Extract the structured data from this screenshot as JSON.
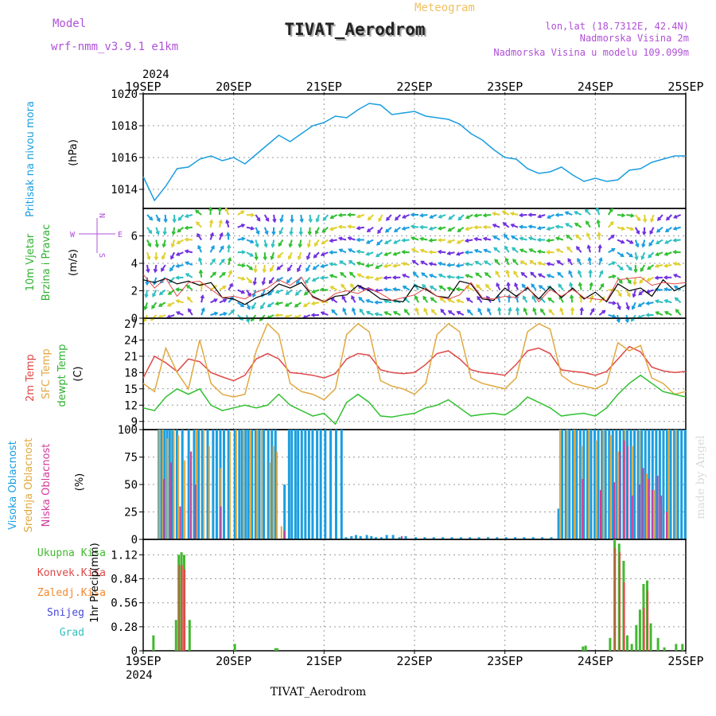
{
  "header": {
    "model_label": "Model",
    "model_name": "wrf-nmm_v3.9.1  e1km",
    "meteogram_label": "Meteogram",
    "station_title": "TIVAT_Aerodrom",
    "lonlat": "lon,lat (18.7312E, 42.4N)",
    "elevation": "Nadmorska Visina 2m",
    "model_elevation": "Nadmorska Visina u modelu 109.099m"
  },
  "footer": {
    "station": "TIVAT_Aerodrom",
    "watermark": "made by Angel"
  },
  "time_axis": {
    "year_top": "2024",
    "year_bottom": "2024",
    "labels": [
      "19SEP",
      "20SEP",
      "21SEP",
      "22SEP",
      "23SEP",
      "24SEP",
      "25SEP"
    ]
  },
  "colors": {
    "pressure": "#1a9ee0",
    "temp2m": "#e04848",
    "sfc_temp": "#e0a840",
    "dewpt": "#30c030",
    "high_cloud": "#1a9ee0",
    "mid_cloud": "#e0a840",
    "low_cloud": "#d03c9c",
    "total_rain": "#44b830",
    "conv_rain": "#e04848",
    "frozen_rain": "#f08a30",
    "snow": "#4848e0",
    "hail": "#30c0c0",
    "wind_speed": "#000000",
    "gust": "#e04848"
  },
  "chart_data": [
    {
      "type": "line",
      "panel": "pressure",
      "ylabel_name": "Pritisak na nivou mora",
      "ylabel_unit": "(hPa)",
      "ylim": [
        1012.8,
        1020
      ],
      "yticks": [
        1014,
        1016,
        1018,
        1020
      ],
      "x_days": [
        0,
        0.125,
        0.25,
        0.375,
        0.5,
        0.625,
        0.75,
        0.875,
        1.0,
        1.125,
        1.25,
        1.375,
        1.5,
        1.625,
        1.75,
        1.875,
        2.0,
        2.125,
        2.25,
        2.375,
        2.5,
        2.625,
        2.75,
        2.875,
        3.0,
        3.125,
        3.25,
        3.375,
        3.5,
        3.625,
        3.75,
        3.875,
        4.0,
        4.125,
        4.25,
        4.375,
        4.5,
        4.625,
        4.75,
        4.875,
        5.0,
        5.125,
        5.25,
        5.375,
        5.5,
        5.625,
        5.75,
        5.875,
        6.0
      ],
      "series": [
        {
          "color_key": "pressure",
          "values": [
            1014.8,
            1013.3,
            1014.2,
            1015.3,
            1015.4,
            1015.9,
            1016.1,
            1015.8,
            1016.0,
            1015.6,
            1016.2,
            1016.8,
            1017.4,
            1017.0,
            1017.5,
            1018.0,
            1018.2,
            1018.6,
            1018.5,
            1019.0,
            1019.4,
            1019.3,
            1018.7,
            1018.8,
            1018.9,
            1018.6,
            1018.5,
            1018.4,
            1018.1,
            1017.5,
            1017.1,
            1016.5,
            1016.0,
            1015.9,
            1015.3,
            1015.0,
            1015.1,
            1015.4,
            1014.9,
            1014.5,
            1014.7,
            1014.5,
            1014.6,
            1015.2,
            1015.3,
            1015.7,
            1015.9,
            1016.1,
            1016.1
          ]
        }
      ]
    },
    {
      "type": "line",
      "panel": "wind",
      "ylabel_name": "10m Vjetar",
      "ylabel_name2": "Brzina i Pravac",
      "ylabel_unit": "(m/s)",
      "ylim": [
        0,
        8
      ],
      "yticks": [
        0,
        2,
        4,
        6
      ],
      "compass_N": "N",
      "compass_W": "W",
      "compass_E": "E",
      "compass_S": "S",
      "x_days": [
        0,
        0.125,
        0.25,
        0.375,
        0.5,
        0.625,
        0.75,
        0.875,
        1.0,
        1.125,
        1.25,
        1.375,
        1.5,
        1.625,
        1.75,
        1.875,
        2.0,
        2.125,
        2.25,
        2.375,
        2.5,
        2.625,
        2.75,
        2.875,
        3.0,
        3.125,
        3.25,
        3.375,
        3.5,
        3.625,
        3.75,
        3.875,
        4.0,
        4.125,
        4.25,
        4.375,
        4.5,
        4.625,
        4.75,
        4.875,
        5.0,
        5.125,
        5.25,
        5.375,
        5.5,
        5.625,
        5.75,
        5.875,
        6.0
      ],
      "series": [
        {
          "color_key": "wind_speed",
          "values": [
            2.8,
            2.6,
            2.9,
            2.5,
            2.7,
            2.4,
            2.6,
            1.5,
            1.4,
            1.0,
            1.5,
            1.8,
            2.5,
            2.2,
            2.6,
            1.6,
            1.2,
            1.6,
            1.7,
            2.4,
            2.0,
            1.4,
            1.3,
            1.2,
            2.4,
            2.1,
            1.6,
            1.5,
            2.7,
            2.5,
            1.4,
            1.3,
            2.2,
            1.6,
            2.2,
            1.4,
            2.3,
            1.5,
            2.2,
            1.4,
            1.9,
            1.2,
            2.5,
            2.0,
            2.2,
            1.6,
            2.8,
            2.0,
            2.4
          ]
        },
        {
          "color_key": "gust",
          "values": [
            3.2,
            2.2,
            2.9,
            1.6,
            2.6,
            2.7,
            2.1,
            1.5,
            1.6,
            1.4,
            1.9,
            2.2,
            2.8,
            2.4,
            3.0,
            1.5,
            1.2,
            1.8,
            2.0,
            1.8,
            2.2,
            1.8,
            1.3,
            1.5,
            1.7,
            2.2,
            1.6,
            1.4,
            1.7,
            2.6,
            1.5,
            1.4,
            1.6,
            1.5,
            2.3,
            1.2,
            2.1,
            1.6,
            2.1,
            1.5,
            1.4,
            1.3,
            2.8,
            2.9,
            3.0,
            2.4,
            2.6,
            2.5,
            2.6
          ]
        }
      ],
      "direction_deg": [
        45,
        60,
        80,
        120,
        150,
        200,
        250,
        220,
        300,
        330,
        20,
        40,
        60,
        40,
        30,
        50,
        70,
        90,
        110,
        90,
        60,
        40,
        50,
        70,
        90,
        80,
        60,
        40,
        30,
        45,
        60,
        75,
        90,
        70,
        50,
        30,
        20,
        40,
        60,
        80,
        100,
        150,
        210,
        250,
        280,
        300,
        320,
        340,
        10
      ]
    },
    {
      "type": "line",
      "panel": "temperature",
      "ylabel_name": "2m Temp",
      "ylabel_name2": "SFC Temp",
      "ylabel_name3": "dewpt Temp",
      "ylabel_unit": "(C)",
      "ylim": [
        7.5,
        28
      ],
      "yticks": [
        9,
        12,
        15,
        18,
        21,
        24,
        27
      ],
      "x_days": [
        0,
        0.125,
        0.25,
        0.375,
        0.5,
        0.625,
        0.75,
        0.875,
        1.0,
        1.125,
        1.25,
        1.375,
        1.5,
        1.625,
        1.75,
        1.875,
        2.0,
        2.125,
        2.25,
        2.375,
        2.5,
        2.625,
        2.75,
        2.875,
        3.0,
        3.125,
        3.25,
        3.375,
        3.5,
        3.625,
        3.75,
        3.875,
        4.0,
        4.125,
        4.25,
        4.375,
        4.5,
        4.625,
        4.75,
        4.875,
        5.0,
        5.125,
        5.25,
        5.375,
        5.5,
        5.625,
        5.75,
        5.875,
        6.0
      ],
      "series": [
        {
          "color_key": "temp2m",
          "values": [
            17.0,
            21.0,
            19.8,
            18.2,
            20.5,
            20.0,
            18.0,
            17.2,
            16.5,
            17.5,
            20.5,
            21.5,
            20.5,
            18.0,
            17.8,
            17.5,
            17.0,
            17.8,
            20.5,
            21.5,
            21.2,
            18.5,
            18.0,
            17.8,
            18.0,
            19.5,
            21.5,
            22.0,
            20.5,
            18.5,
            18.0,
            17.8,
            17.5,
            19.5,
            22.0,
            22.5,
            21.5,
            18.5,
            18.2,
            18.0,
            17.5,
            18.2,
            20.5,
            22.8,
            21.8,
            19.0,
            18.3,
            18.0,
            18.2
          ]
        },
        {
          "color_key": "sfc_temp",
          "values": [
            16.0,
            14.5,
            22.5,
            18.0,
            15.0,
            24.0,
            16.0,
            14.0,
            13.5,
            14.0,
            22.0,
            27.0,
            25.0,
            16.0,
            14.5,
            14.0,
            13.0,
            15.0,
            25.0,
            27.0,
            25.5,
            16.5,
            15.5,
            15.0,
            14.0,
            16.0,
            25.0,
            27.0,
            25.5,
            17.0,
            16.0,
            15.5,
            15.0,
            17.0,
            25.5,
            27.0,
            26.0,
            17.5,
            16.0,
            15.5,
            15.0,
            16.0,
            23.5,
            22.0,
            23.0,
            17.0,
            16.0,
            14.0,
            14.5
          ]
        },
        {
          "color_key": "dewpt",
          "values": [
            11.5,
            11.0,
            13.5,
            15.0,
            14.0,
            15.0,
            12.0,
            11.0,
            11.5,
            12.0,
            11.5,
            12.0,
            14.0,
            12.0,
            11.0,
            10.0,
            10.5,
            8.5,
            12.5,
            14.0,
            12.5,
            10.0,
            9.8,
            10.2,
            10.5,
            11.5,
            12.0,
            13.0,
            11.5,
            10.0,
            10.3,
            10.5,
            10.2,
            11.5,
            13.5,
            12.5,
            11.5,
            10.0,
            10.3,
            10.5,
            10.0,
            11.5,
            14.0,
            16.0,
            17.5,
            16.0,
            14.5,
            14.0,
            13.5
          ]
        }
      ]
    },
    {
      "type": "bar",
      "panel": "cloud",
      "ylabel_name": "Visoka Oblacnost",
      "ylabel_name2": "Srednja Oblacnost",
      "ylabel_name3": "Niska Oblacnost",
      "ylabel_unit": "(%)",
      "ylim": [
        0,
        100
      ],
      "yticks": [
        0,
        25,
        50,
        75,
        100
      ],
      "series": [
        {
          "name": "high",
          "color_key": "high_cloud",
          "x_days": [
            0.16,
            0.19,
            0.22,
            0.25,
            0.28,
            0.31,
            0.36,
            0.42,
            0.49,
            0.55,
            0.6,
            0.64,
            0.7,
            0.76,
            0.8,
            0.84,
            0.88,
            0.93,
            1.0,
            1.05,
            1.08,
            1.12,
            1.15,
            1.19,
            1.23,
            1.27,
            1.32,
            1.37,
            1.41,
            1.45,
            1.55,
            1.6,
            1.63,
            1.67,
            1.7,
            1.74,
            1.78,
            1.82,
            1.86,
            1.91,
            1.95,
            2.0,
            2.06,
            2.12,
            2.18,
            2.23,
            2.29,
            2.34,
            2.39,
            2.46,
            2.51,
            2.56,
            2.62,
            2.68,
            2.75,
            2.82,
            2.89,
            3.0,
            3.1,
            3.2,
            3.3,
            3.4,
            3.5,
            3.6,
            3.7,
            3.8,
            3.9,
            4.0,
            4.1,
            4.2,
            4.3,
            4.4,
            4.5,
            4.58,
            4.62,
            4.66,
            4.7,
            4.74,
            4.78,
            4.82,
            4.86,
            4.9,
            4.94,
            4.98,
            5.02,
            5.06,
            5.1,
            5.14,
            5.18,
            5.22,
            5.26,
            5.3,
            5.34,
            5.38,
            5.42,
            5.46,
            5.5,
            5.54,
            5.58,
            5.62,
            5.66,
            5.7,
            5.74,
            5.78,
            5.82,
            5.86,
            5.9,
            5.94,
            5.98
          ],
          "values": [
            100,
            100,
            100,
            100,
            100,
            100,
            100,
            100,
            100,
            100,
            100,
            100,
            100,
            100,
            100,
            100,
            100,
            100,
            100,
            100,
            100,
            100,
            100,
            100,
            100,
            100,
            100,
            100,
            100,
            100,
            50,
            100,
            100,
            100,
            100,
            100,
            100,
            100,
            100,
            100,
            100,
            100,
            100,
            100,
            100,
            2,
            3,
            4,
            3,
            4,
            3,
            2,
            2,
            4,
            4,
            2,
            3,
            2,
            2,
            2,
            2,
            2,
            2,
            2,
            2,
            2,
            2,
            2,
            2,
            2,
            2,
            2,
            2,
            28,
            100,
            100,
            100,
            100,
            100,
            100,
            100,
            100,
            100,
            100,
            100,
            100,
            100,
            100,
            100,
            100,
            100,
            100,
            100,
            100,
            100,
            100,
            100,
            100,
            100,
            100,
            100,
            100,
            100,
            100,
            100,
            100,
            100,
            100,
            100
          ]
        },
        {
          "name": "mid",
          "color_key": "mid_cloud",
          "x_days": [
            0.17,
            0.21,
            0.26,
            0.33,
            0.38,
            0.45,
            0.52,
            0.58,
            0.66,
            0.72,
            0.85,
            0.95,
            1.02,
            1.1,
            1.18,
            1.25,
            1.3,
            1.39,
            1.43,
            1.47,
            1.52,
            4.6,
            4.68,
            4.76,
            4.84,
            4.92,
            5.0,
            5.08,
            5.16,
            5.24,
            5.32,
            5.4,
            5.48,
            5.56,
            5.64,
            5.72,
            5.8,
            5.88
          ],
          "values": [
            100,
            100,
            92,
            100,
            95,
            72,
            80,
            100,
            100,
            85,
            65,
            98,
            100,
            100,
            100,
            100,
            100,
            70,
            85,
            80,
            12,
            100,
            100,
            100,
            85,
            100,
            90,
            100,
            95,
            80,
            100,
            85,
            100,
            60,
            45,
            30,
            100,
            100
          ]
        },
        {
          "name": "low",
          "color_key": "low_cloud",
          "x_days": [
            0.22,
            0.3,
            0.4,
            0.52,
            0.57,
            0.85,
            1.55,
            2.85,
            4.85,
            5.05,
            5.2,
            5.26,
            5.31,
            5.35,
            5.4,
            5.48,
            5.52,
            5.58,
            5.62,
            5.68,
            5.72,
            5.78
          ],
          "values": [
            55,
            70,
            30,
            80,
            50,
            30,
            8,
            3,
            55,
            45,
            52,
            80,
            90,
            85,
            40,
            50,
            65,
            55,
            45,
            58,
            40,
            25
          ]
        }
      ]
    },
    {
      "type": "bar",
      "panel": "precip",
      "ylabel_name": "1hr Precip",
      "ylabel_unit": "(mm)",
      "legend": [
        "Ukupna Kisa",
        "Konvek.Kisa",
        "Zaledj.Kisa",
        "Snijeg",
        "Grad"
      ],
      "ylim": [
        0,
        1.3
      ],
      "yticks": [
        0,
        0.28,
        0.56,
        0.84,
        1.12
      ],
      "ytick_labels": [
        "0",
        "0.28",
        "0.56",
        "0.84",
        "1.12"
      ],
      "series": [
        {
          "name": "Ukupna Kisa",
          "color_key": "total_rain",
          "x_days": [
            0.1,
            0.35,
            0.38,
            0.41,
            0.44,
            0.5,
            1.0,
            1.45,
            1.47,
            4.85,
            4.88,
            5.15,
            5.2,
            5.25,
            5.3,
            5.34,
            5.39,
            5.44,
            5.48,
            5.52,
            5.56,
            5.6,
            5.68,
            5.75,
            5.88,
            5.95
          ],
          "values": [
            0.18,
            0.36,
            1.12,
            1.15,
            1.12,
            0.36,
            0.08,
            0.03,
            0.03,
            0.05,
            0.06,
            0.15,
            1.3,
            1.25,
            1.05,
            0.18,
            0.08,
            0.3,
            0.48,
            0.78,
            0.82,
            0.32,
            0.15,
            0.04,
            0.08,
            0.08
          ]
        },
        {
          "name": "Konvek.Kisa",
          "color_key": "conv_rain",
          "x_days": [
            0.39,
            0.42,
            0.45,
            5.21,
            5.26,
            5.31,
            5.53,
            5.57
          ],
          "values": [
            1.0,
            1.0,
            0.95,
            1.2,
            1.15,
            0.8,
            0.5,
            0.7
          ]
        }
      ]
    }
  ]
}
